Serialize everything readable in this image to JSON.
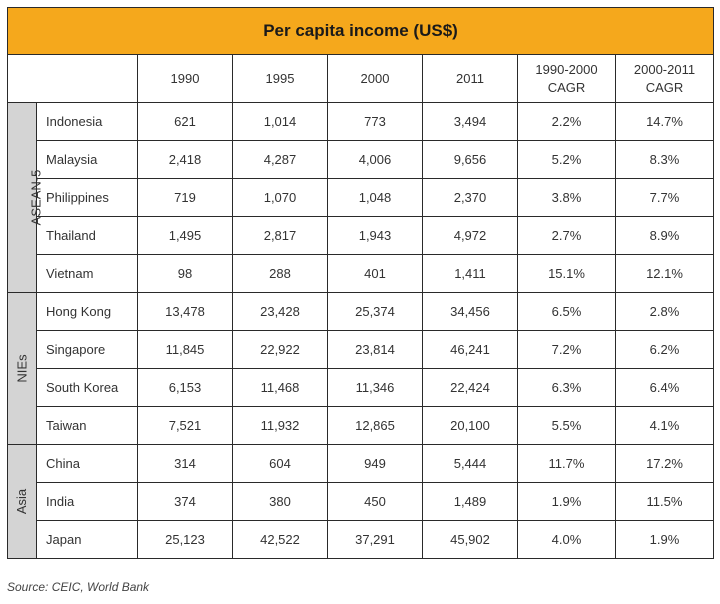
{
  "table": {
    "title": "Per capita income (US$)",
    "columns": [
      "1990",
      "1995",
      "2000",
      "2011",
      "1990-2000\nCAGR",
      "2000-2011\nCAGR"
    ],
    "groups": [
      {
        "label": "ASEAN-5",
        "rows": [
          {
            "country": "Indonesia",
            "values": [
              "621",
              "1,014",
              "773",
              "3,494",
              "2.2%",
              "14.7%"
            ]
          },
          {
            "country": "Malaysia",
            "values": [
              "2,418",
              "4,287",
              "4,006",
              "9,656",
              "5.2%",
              "8.3%"
            ]
          },
          {
            "country": "Philippines",
            "values": [
              "719",
              "1,070",
              "1,048",
              "2,370",
              "3.8%",
              "7.7%"
            ]
          },
          {
            "country": "Thailand",
            "values": [
              "1,495",
              "2,817",
              "1,943",
              "4,972",
              "2.7%",
              "8.9%"
            ]
          },
          {
            "country": "Vietnam",
            "values": [
              "98",
              "288",
              "401",
              "1,411",
              "15.1%",
              "12.1%"
            ]
          }
        ]
      },
      {
        "label": "NIEs",
        "rows": [
          {
            "country": "Hong Kong",
            "values": [
              "13,478",
              "23,428",
              "25,374",
              "34,456",
              "6.5%",
              "2.8%"
            ]
          },
          {
            "country": "Singapore",
            "values": [
              "11,845",
              "22,922",
              "23,814",
              "46,241",
              "7.2%",
              "6.2%"
            ]
          },
          {
            "country": "South Korea",
            "values": [
              "6,153",
              "11,468",
              "11,346",
              "22,424",
              "6.3%",
              "6.4%"
            ]
          },
          {
            "country": "Taiwan",
            "values": [
              "7,521",
              "11,932",
              "12,865",
              "20,100",
              "5.5%",
              "4.1%"
            ]
          }
        ]
      },
      {
        "label": "Asia",
        "rows": [
          {
            "country": "China",
            "values": [
              "314",
              "604",
              "949",
              "5,444",
              "11.7%",
              "17.2%"
            ]
          },
          {
            "country": "India",
            "values": [
              "374",
              "380",
              "450",
              "1,489",
              "1.9%",
              "11.5%"
            ]
          },
          {
            "country": "Japan",
            "values": [
              "25,123",
              "42,522",
              "37,291",
              "45,902",
              "4.0%",
              "1.9%"
            ]
          }
        ]
      }
    ]
  },
  "source": "Source: CEIC, World Bank",
  "colors": {
    "title_bg": "#f5a81c",
    "group_bg": "#d4d4d4",
    "border": "#2a2a2a"
  }
}
